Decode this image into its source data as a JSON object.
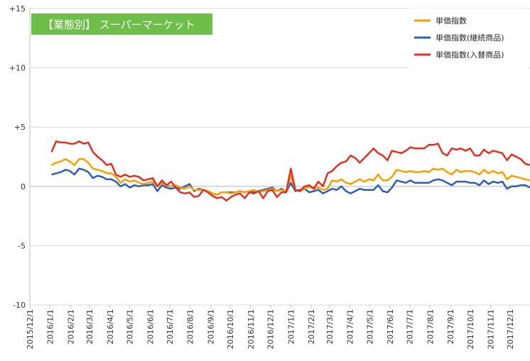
{
  "chart_data": {
    "type": "line",
    "title": "【業態別】 スーパーマーケット",
    "title_box_color": "#6dbf4a",
    "ylim": [
      -10,
      15
    ],
    "y_ticks": [
      {
        "value": 15,
        "label": "+15"
      },
      {
        "value": 10,
        "label": "+10"
      },
      {
        "value": 5,
        "label": "+5"
      },
      {
        "value": 0,
        "label": "0"
      },
      {
        "value": -5,
        "label": "-5"
      },
      {
        "value": -10,
        "label": "-10"
      }
    ],
    "grid": "horizontal",
    "legend_position": "top-right",
    "x_range": [
      "2015-12-01",
      "2017-12-31"
    ],
    "x_tick_labels": [
      "2015/12/1",
      "2016/1/1",
      "2016/2/1",
      "2016/3/1",
      "2016/4/1",
      "2016/5/1",
      "2016/6/1",
      "2016/7/1",
      "2016/8/1",
      "2016/9/1",
      "2016/10/1",
      "2016/11/1",
      "2016/12/1",
      "2017/1/1",
      "2017/2/1",
      "2017/3/1",
      "2017/4/1",
      "2017/5/1",
      "2017/6/1",
      "2017/7/1",
      "2017/8/1",
      "2017/9/1",
      "2017/10/1",
      "2017/11/1",
      "2017/12/1"
    ],
    "x": [
      "2016-01-03",
      "2016-01-10",
      "2016-01-17",
      "2016-01-24",
      "2016-01-31",
      "2016-02-07",
      "2016-02-14",
      "2016-02-21",
      "2016-02-28",
      "2016-03-06",
      "2016-03-13",
      "2016-03-20",
      "2016-03-27",
      "2016-04-03",
      "2016-04-10",
      "2016-04-17",
      "2016-04-24",
      "2016-05-01",
      "2016-05-08",
      "2016-05-15",
      "2016-05-22",
      "2016-05-29",
      "2016-06-05",
      "2016-06-12",
      "2016-06-19",
      "2016-06-26",
      "2016-07-03",
      "2016-07-10",
      "2016-07-17",
      "2016-07-24",
      "2016-07-31",
      "2016-08-07",
      "2016-08-14",
      "2016-08-21",
      "2016-08-28",
      "2016-09-04",
      "2016-09-11",
      "2016-09-18",
      "2016-09-25",
      "2016-10-02",
      "2016-10-09",
      "2016-10-16",
      "2016-10-23",
      "2016-10-30",
      "2016-11-06",
      "2016-11-13",
      "2016-11-20",
      "2016-11-27",
      "2016-12-04",
      "2016-12-11",
      "2016-12-18",
      "2016-12-25",
      "2017-01-01",
      "2017-01-08",
      "2017-01-15",
      "2017-01-22",
      "2017-01-29",
      "2017-02-05",
      "2017-02-12",
      "2017-02-19",
      "2017-02-26",
      "2017-03-05",
      "2017-03-12",
      "2017-03-19",
      "2017-03-26",
      "2017-04-02",
      "2017-04-09",
      "2017-04-16",
      "2017-04-23",
      "2017-04-30",
      "2017-05-07",
      "2017-05-14",
      "2017-05-21",
      "2017-05-28",
      "2017-06-04",
      "2017-06-11",
      "2017-06-18",
      "2017-06-25",
      "2017-07-02",
      "2017-07-09",
      "2017-07-16",
      "2017-07-23",
      "2017-07-30",
      "2017-08-06",
      "2017-08-13",
      "2017-08-20",
      "2017-08-27",
      "2017-09-03",
      "2017-09-10",
      "2017-09-17",
      "2017-09-24",
      "2017-10-01",
      "2017-10-08",
      "2017-10-15",
      "2017-10-22",
      "2017-10-29",
      "2017-11-05",
      "2017-11-12",
      "2017-11-19",
      "2017-11-26",
      "2017-12-03",
      "2017-12-10",
      "2017-12-17",
      "2017-12-24",
      "2017-12-31"
    ],
    "series": [
      {
        "name": "単価指数",
        "color": "#f5a000",
        "values": [
          1.8,
          2.0,
          2.1,
          2.3,
          2.1,
          1.8,
          2.3,
          2.3,
          2.0,
          1.5,
          1.4,
          1.3,
          1.1,
          1.1,
          0.8,
          0.3,
          0.6,
          0.4,
          0.5,
          0.3,
          0.2,
          0.3,
          0.4,
          0.0,
          0.3,
          0.1,
          0.0,
          0.1,
          -0.1,
          -0.2,
          0.0,
          -0.3,
          -0.3,
          -0.3,
          -0.4,
          -0.6,
          -0.7,
          -0.5,
          -0.5,
          -0.6,
          -0.5,
          -0.4,
          -0.5,
          -0.4,
          -0.3,
          -0.5,
          -0.4,
          -0.3,
          -0.2,
          -0.4,
          -0.3,
          -0.5,
          0.9,
          -0.3,
          -0.4,
          -0.2,
          0.0,
          -0.2,
          -0.1,
          -0.3,
          -0.2,
          0.5,
          0.4,
          0.6,
          0.3,
          0.2,
          0.4,
          0.6,
          0.4,
          0.6,
          0.5,
          1.0,
          0.5,
          0.5,
          0.8,
          1.4,
          1.3,
          1.2,
          1.3,
          1.2,
          1.2,
          1.3,
          1.2,
          1.5,
          1.4,
          1.5,
          1.2,
          1.0,
          1.4,
          1.2,
          1.3,
          1.3,
          1.2,
          1.0,
          1.4,
          1.1,
          1.3,
          1.1,
          1.2,
          0.6,
          0.9,
          0.8,
          0.7,
          0.6,
          0.5
        ]
      },
      {
        "name": "単価指数(継続商品)",
        "color": "#2e5cb8",
        "values": [
          1.0,
          1.1,
          1.2,
          1.4,
          1.3,
          1.0,
          1.5,
          1.4,
          1.2,
          0.7,
          0.9,
          0.8,
          0.6,
          0.6,
          0.4,
          0.0,
          0.2,
          -0.1,
          0.1,
          0.0,
          0.1,
          0.1,
          0.2,
          -0.4,
          0.1,
          -0.1,
          -0.2,
          -0.1,
          -0.2,
          0.0,
          0.2,
          -0.4,
          -0.2,
          -0.3,
          -0.4,
          -0.6,
          -0.7,
          -0.5,
          -0.5,
          -0.5,
          -0.5,
          -0.4,
          -0.5,
          -0.4,
          -0.5,
          -0.4,
          -0.3,
          -0.2,
          -0.1,
          -0.4,
          -0.2,
          -0.5,
          0.3,
          -0.4,
          -0.3,
          -0.2,
          -0.5,
          -0.4,
          -0.3,
          -0.6,
          -0.4,
          -0.2,
          -0.3,
          0.0,
          -0.4,
          -0.6,
          -0.4,
          -0.2,
          -0.3,
          -0.3,
          -0.3,
          0.1,
          -0.4,
          -0.5,
          -0.1,
          0.5,
          0.4,
          0.3,
          0.5,
          0.3,
          0.3,
          0.3,
          0.3,
          0.5,
          0.6,
          0.5,
          0.3,
          0.1,
          0.4,
          0.4,
          0.4,
          0.3,
          0.3,
          0.1,
          0.5,
          0.2,
          0.4,
          0.3,
          0.4,
          -0.2,
          0.0,
          0.0,
          0.1,
          0.1,
          -0.1
        ]
      },
      {
        "name": "単価指数(入替商品)",
        "color": "#e03020",
        "values": [
          2.9,
          3.8,
          3.7,
          3.7,
          3.6,
          3.6,
          3.8,
          3.6,
          3.7,
          2.9,
          2.5,
          2.2,
          1.8,
          1.9,
          1.0,
          0.8,
          1.0,
          0.8,
          0.9,
          0.8,
          0.5,
          0.6,
          0.7,
          0.0,
          0.5,
          0.1,
          0.4,
          -0.1,
          -0.5,
          -0.6,
          -0.5,
          -0.9,
          -0.8,
          -0.3,
          -0.5,
          -0.8,
          -1.0,
          -0.9,
          -1.2,
          -0.9,
          -0.7,
          -0.6,
          -1.0,
          -0.5,
          -0.6,
          -0.4,
          -1.0,
          -0.4,
          -0.3,
          -0.9,
          -0.5,
          -0.5,
          1.5,
          -0.3,
          -0.4,
          0.0,
          0.1,
          -0.2,
          0.4,
          0.0,
          1.1,
          1.3,
          1.7,
          2.0,
          2.1,
          2.6,
          2.4,
          2.0,
          2.4,
          2.8,
          3.2,
          2.8,
          2.6,
          2.2,
          3.0,
          2.9,
          2.8,
          3.0,
          3.3,
          3.2,
          3.2,
          3.2,
          3.5,
          3.5,
          3.6,
          2.8,
          2.6,
          3.2,
          3.1,
          3.2,
          3.0,
          3.2,
          2.6,
          2.6,
          3.1,
          2.8,
          3.0,
          2.9,
          2.8,
          2.2,
          2.7,
          2.5,
          2.3,
          1.9,
          1.8
        ]
      }
    ]
  }
}
